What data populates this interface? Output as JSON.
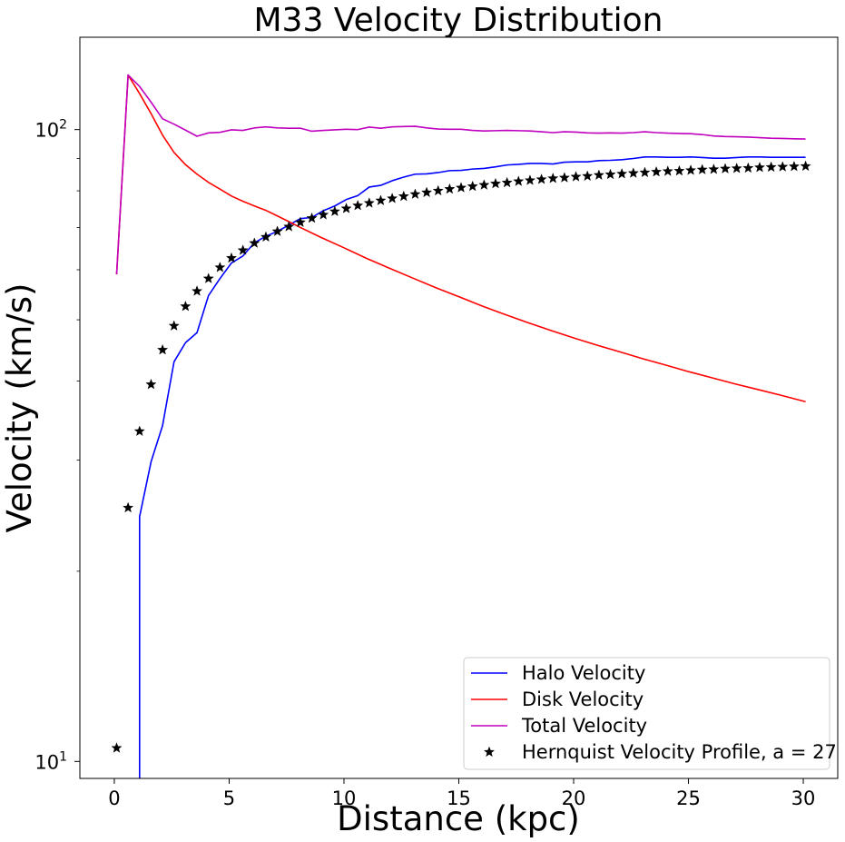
{
  "chart_data": {
    "type": "line",
    "title": "M33 Velocity Distribution",
    "xlabel": "Distance (kpc)",
    "ylabel": "Velocity (km/s)",
    "xlim": [
      -1.5,
      31.5
    ],
    "ylim": [
      9.4,
      140
    ],
    "yscale": "log",
    "grid": false,
    "legend_position": "lower-right",
    "x_ticks": [
      0,
      5,
      10,
      15,
      20,
      25,
      30
    ],
    "x_tick_labels": [
      "0",
      "5",
      "10",
      "15",
      "20",
      "25",
      "30"
    ],
    "y_major_ticks": [
      10,
      100
    ],
    "y_major_tick_labels": [
      "10",
      "10"
    ],
    "y_major_tick_exponents": [
      "1",
      "2"
    ],
    "y_minor_ticks": [
      20,
      30,
      40,
      50,
      60,
      70,
      80,
      90
    ],
    "series": [
      {
        "name": "Halo Velocity",
        "kind": "line",
        "color": "#0000ff",
        "x": [
          1.1,
          1.1,
          1.6,
          2.1,
          2.6,
          3.1,
          3.6,
          4.1,
          4.6,
          5.1,
          5.6,
          6.1,
          6.6,
          7.1,
          7.6,
          8.1,
          8.6,
          9.1,
          9.6,
          10.1,
          10.6,
          11.1,
          11.6,
          12.1,
          12.6,
          13.1,
          13.6,
          14.1,
          14.6,
          15.1,
          15.6,
          16.1,
          16.6,
          17.1,
          17.6,
          18.1,
          18.6,
          19.1,
          19.6,
          20.1,
          20.6,
          21.1,
          21.6,
          22.1,
          22.6,
          23.1,
          23.6,
          24.1,
          24.6,
          25.1,
          25.6,
          26.1,
          26.6,
          27.1,
          27.6,
          28.1,
          28.6,
          29.1,
          29.6,
          30.1
        ],
        "values": [
          9.4,
          24.4,
          29.8,
          34.0,
          42.9,
          46.0,
          47.7,
          54.6,
          58.1,
          61.5,
          63.1,
          66.2,
          67.8,
          69.0,
          70.6,
          72.3,
          72.6,
          74.4,
          75.7,
          77.5,
          78.6,
          81.1,
          81.6,
          83.0,
          84.1,
          85.0,
          85.1,
          85.5,
          86.1,
          86.2,
          86.6,
          86.8,
          87.3,
          87.9,
          88.1,
          88.4,
          88.4,
          88.2,
          88.8,
          88.9,
          88.9,
          89.3,
          89.4,
          89.6,
          90.0,
          90.5,
          90.5,
          90.4,
          90.4,
          90.5,
          90.3,
          90.1,
          90.1,
          90.3,
          90.5,
          90.5,
          90.4,
          90.4,
          90.4,
          90.4
        ]
      },
      {
        "name": "Disk Velocity",
        "kind": "line",
        "color": "#ff0000",
        "x": [
          0.1,
          0.6,
          1.1,
          1.6,
          2.1,
          2.6,
          3.1,
          3.6,
          4.1,
          4.6,
          5.1,
          5.6,
          6.1,
          6.6,
          7.1,
          7.6,
          8.1,
          9.0,
          10.0,
          11.0,
          12.0,
          13.0,
          14.0,
          15.0,
          16.0,
          17.0,
          18.0,
          19.0,
          20.0,
          21.0,
          22.0,
          23.0,
          24.0,
          25.0,
          26.0,
          27.0,
          28.0,
          29.0,
          30.1
        ],
        "values": [
          59.0,
          122.0,
          114.0,
          106.0,
          98.0,
          92.0,
          88.0,
          85.0,
          82.5,
          80.5,
          78.5,
          77.0,
          75.7,
          74.5,
          73.0,
          71.5,
          70.0,
          67.5,
          65.0,
          62.5,
          60.3,
          58.2,
          56.2,
          54.4,
          52.6,
          51.0,
          49.5,
          48.1,
          46.8,
          45.6,
          44.5,
          43.4,
          42.4,
          41.4,
          40.5,
          39.6,
          38.8,
          38.0,
          37.1
        ]
      },
      {
        "name": "Total Velocity",
        "kind": "line",
        "color": "#bf00bf",
        "x": [
          0.1,
          0.6,
          1.1,
          1.6,
          2.1,
          2.6,
          3.1,
          3.6,
          4.1,
          4.6,
          5.1,
          5.6,
          6.1,
          6.6,
          7.1,
          7.6,
          8.1,
          8.6,
          9.1,
          9.6,
          10.1,
          10.6,
          11.1,
          11.6,
          12.1,
          12.6,
          13.1,
          13.6,
          14.1,
          14.6,
          15.1,
          15.6,
          16.1,
          16.6,
          17.1,
          17.6,
          18.1,
          18.6,
          19.1,
          19.6,
          20.1,
          20.6,
          21.1,
          21.6,
          22.1,
          22.6,
          23.1,
          23.6,
          24.1,
          24.6,
          25.1,
          25.6,
          26.1,
          26.6,
          27.1,
          27.6,
          28.1,
          28.6,
          29.1,
          29.6,
          30.1
        ],
        "values": [
          59.0,
          122.0,
          117.0,
          110.5,
          104.0,
          102.0,
          99.8,
          97.6,
          98.8,
          99.0,
          99.9,
          99.7,
          100.6,
          101.0,
          100.6,
          100.5,
          100.5,
          99.4,
          99.7,
          99.9,
          100.1,
          100.0,
          100.9,
          100.5,
          101.0,
          101.1,
          101.2,
          100.6,
          100.2,
          100.1,
          100.1,
          99.7,
          99.5,
          99.6,
          99.7,
          99.6,
          99.5,
          99.2,
          98.9,
          99.2,
          99.1,
          98.8,
          98.7,
          98.8,
          98.7,
          98.9,
          99.2,
          98.9,
          98.7,
          98.6,
          98.5,
          98.2,
          97.7,
          97.5,
          97.4,
          97.3,
          97.1,
          96.9,
          96.8,
          96.7,
          96.6
        ]
      },
      {
        "name": "Hernquist Velocity Profile, a = 27",
        "kind": "scatter",
        "marker": "star",
        "color": "#000000",
        "x": [
          0.1,
          0.6,
          1.1,
          1.6,
          2.1,
          2.6,
          3.1,
          3.6,
          4.1,
          4.6,
          5.1,
          5.6,
          6.1,
          6.6,
          7.1,
          7.6,
          8.1,
          8.6,
          9.1,
          9.6,
          10.1,
          10.6,
          11.1,
          11.6,
          12.1,
          12.6,
          13.1,
          13.6,
          14.1,
          14.6,
          15.1,
          15.6,
          16.1,
          16.6,
          17.1,
          17.6,
          18.1,
          18.6,
          19.1,
          19.6,
          20.1,
          20.6,
          21.1,
          21.6,
          22.1,
          22.6,
          23.1,
          23.6,
          24.1,
          24.6,
          25.1,
          25.6,
          26.1,
          26.6,
          27.1,
          27.6,
          28.1,
          28.6,
          29.1,
          29.6,
          30.1
        ],
        "values": [
          10.5,
          25.2,
          33.3,
          39.5,
          44.8,
          48.9,
          52.5,
          55.5,
          58.1,
          60.5,
          62.6,
          64.4,
          66.1,
          67.6,
          69.0,
          70.2,
          71.3,
          72.4,
          73.3,
          74.2,
          75.0,
          75.8,
          76.5,
          77.2,
          77.8,
          78.4,
          79.0,
          79.5,
          80.0,
          80.5,
          80.9,
          81.3,
          81.7,
          82.1,
          82.4,
          82.8,
          83.1,
          83.4,
          83.7,
          83.9,
          84.2,
          84.4,
          84.7,
          84.9,
          85.1,
          85.3,
          85.5,
          85.7,
          85.9,
          86.0,
          86.2,
          86.4,
          86.5,
          86.7,
          86.8,
          86.9,
          87.1,
          87.2,
          87.3,
          87.4,
          87.5
        ]
      }
    ]
  }
}
